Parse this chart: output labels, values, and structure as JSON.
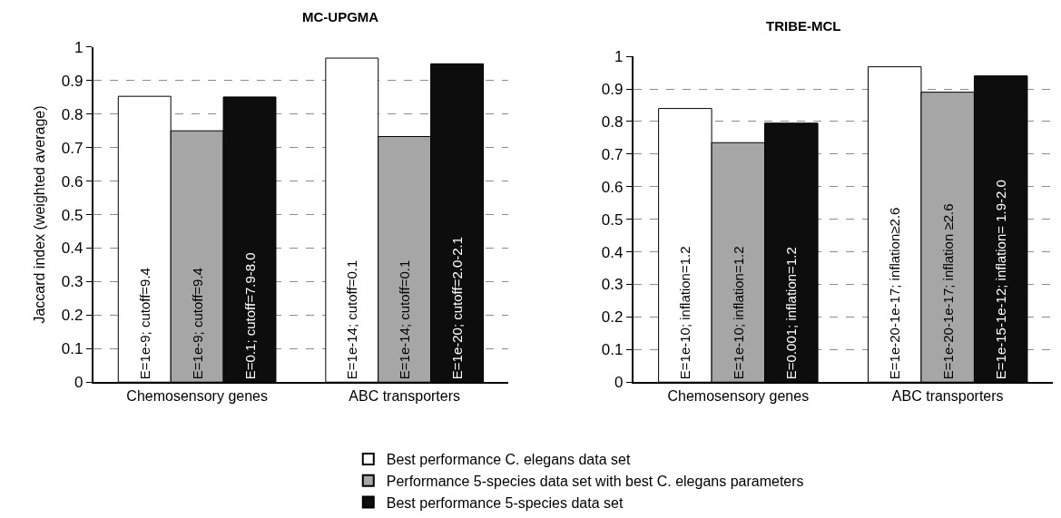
{
  "chart_data": [
    {
      "type": "bar",
      "title": "MC-UPGMA",
      "ylabel": "Jaccard index (weighted average)",
      "categories": [
        "Chemosensory genes",
        "ABC transporters"
      ],
      "series": [
        {
          "name": "Best performance C. elegans data set",
          "color": "#ffffff",
          "values": [
            0.853,
            0.967
          ],
          "value_labels": [
            "E=1e-9; cutoff=9.4",
            "E=1e-14; cutoff=0.1"
          ]
        },
        {
          "name": "Performance 5-species data set with best C. elegans parameters",
          "color": "#a6a6a6",
          "values": [
            0.75,
            0.733
          ],
          "value_labels": [
            "E=1e-9; cutoff=9.4",
            "E=1e-14; cutoff=0.1"
          ]
        },
        {
          "name": "Best performance 5-species data set",
          "color": "#0d0d0d",
          "values": [
            0.851,
            0.95
          ],
          "value_labels": [
            "E=0.1; cutoff=7.9-8.0",
            "E=1e-20; cutoff=2.0-2.1"
          ]
        }
      ],
      "ylim": [
        0,
        1
      ],
      "yticks": [
        0,
        0.1,
        0.2,
        0.3,
        0.4,
        0.5,
        0.6,
        0.7,
        0.8,
        0.9,
        1
      ],
      "grid": "y",
      "legend": "bottom"
    },
    {
      "type": "bar",
      "title": "TRIBE-MCL",
      "categories": [
        "Chemosensory genes",
        "ABC transporters"
      ],
      "series": [
        {
          "color": "#ffffff",
          "values": [
            0.84,
            0.968
          ],
          "value_labels": [
            "E=1e-10; inflation=1.2",
            "E=1e-20-1e-17; inflation≥2.6"
          ]
        },
        {
          "color": "#a6a6a6",
          "values": [
            0.735,
            0.89
          ],
          "value_labels": [
            "E=1e-10; inflation=1.2",
            "E=1e-20-1e-17; inflation ≥2.6"
          ]
        },
        {
          "color": "#0d0d0d",
          "values": [
            0.795,
            0.94
          ],
          "value_labels": [
            "E=0.001; inflation=1.2",
            "E=1e-15-1e-12; inflation= 1.9-2.0"
          ]
        }
      ],
      "ylim": [
        0,
        1
      ],
      "yticks": [
        0,
        0.1,
        0.2,
        0.3,
        0.4,
        0.5,
        0.6,
        0.7,
        0.8,
        0.9,
        1
      ],
      "grid": "y"
    }
  ]
}
